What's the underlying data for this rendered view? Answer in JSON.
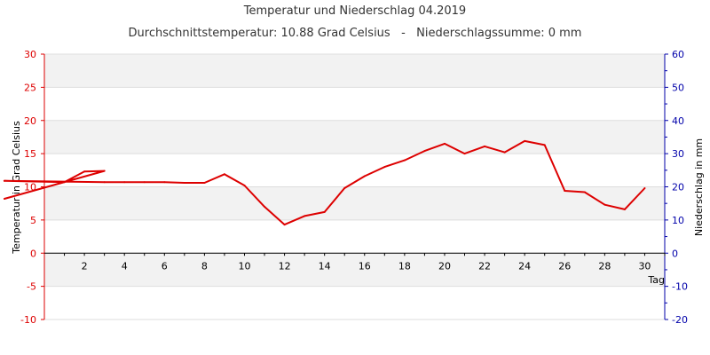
{
  "chart_data": {
    "type": "line",
    "title": "Temperatur und Niederschlag 04.2019",
    "subtitle": "Durchschnittstemperatur: 10.88 Grad Celsius   -   Niederschlagssumme: 0 mm",
    "xlabel": "Tag",
    "ylabel": "Temperatur in Grad Celsius",
    "ylabel_right": "Niederschlag in mm",
    "xlim": [
      0,
      31
    ],
    "ylim": [
      -10,
      30
    ],
    "ylim_right": [
      -20,
      60
    ],
    "x_ticks": [
      "2",
      "4",
      "6",
      "8",
      "10",
      "12",
      "14",
      "16",
      "18",
      "20",
      "22",
      "24",
      "26",
      "28",
      "30"
    ],
    "y_ticks": [
      "-10",
      "-5",
      "0",
      "5",
      "10",
      "15",
      "20",
      "25",
      "30"
    ],
    "y_ticks_right": [
      "-20",
      "-10",
      "0",
      "10",
      "20",
      "30",
      "40",
      "50",
      "60"
    ],
    "grid": "horizontal bands",
    "colors": {
      "temperature": "#dd0000",
      "left_axis": "#dd0000",
      "right_axis": "#0000aa",
      "band": "#f2f2f2",
      "gridline": "#dddddd"
    },
    "series": [
      {
        "x": [
          -2,
          3,
          2,
          1,
          -2,
          3,
          4,
          5,
          6,
          7,
          8,
          9,
          10,
          11,
          12,
          13,
          14,
          15,
          16,
          17,
          18,
          19,
          20,
          21,
          22,
          23,
          24,
          25,
          26,
          27,
          28,
          29,
          30
        ],
        "values": [
          8.2,
          12.4,
          12.3,
          10.7,
          10.9,
          10.7,
          10.7,
          10.7,
          10.7,
          10.6,
          10.6,
          11.9,
          10.2,
          7.0,
          4.3,
          5.6,
          6.2,
          9.8,
          11.6,
          13.0,
          14.0,
          15.4,
          16.5,
          15.0,
          16.1,
          15.2,
          16.9,
          16.3,
          9.4,
          9.2,
          7.3,
          6.6,
          9.8
        ]
      }
    ]
  }
}
